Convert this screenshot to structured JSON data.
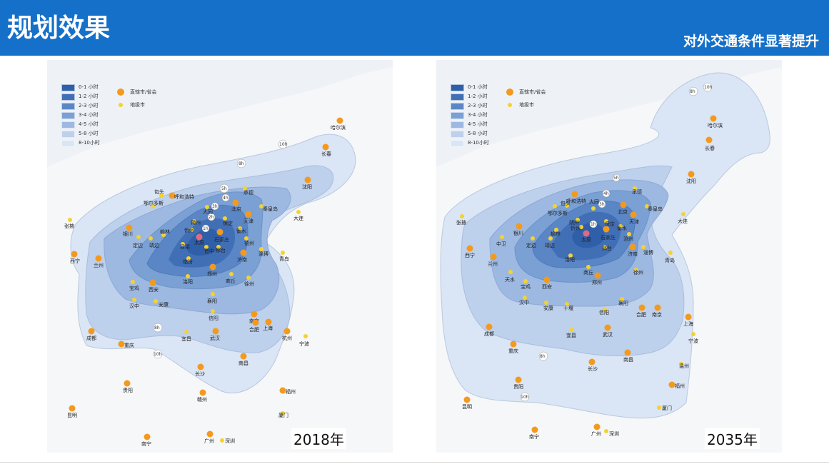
{
  "header": {
    "title": "规划效果",
    "subtitle": "对外交通条件显著提升"
  },
  "legend": {
    "zones": [
      "0-1 小时",
      "1-2 小时",
      "2-3 小时",
      "3-4 小时",
      "4-5 小时",
      "5-8 小时",
      "8-10小时"
    ],
    "zone_colors": [
      "#2f5fa8",
      "#416fb6",
      "#5a86c6",
      "#7aa0d4",
      "#9db9e1",
      "#bdd0ec",
      "#dae5f5"
    ],
    "major_city": "直辖市/省会",
    "prefecture_city": "地级市"
  },
  "maps": [
    {
      "year": "2018年",
      "contour_labels": [
        "1h",
        "2h",
        "3h",
        "4h",
        "5h",
        "8h",
        "10h"
      ],
      "cities": [
        "哈尔滨",
        "长春",
        "沈阳",
        "大连",
        "呼和浩特",
        "包头",
        "鄂尔多斯",
        "榆林",
        "北京",
        "天津",
        "唐山",
        "秦皇岛",
        "承德",
        "大同",
        "朔州",
        "忻州",
        "太原",
        "晋中",
        "吕梁",
        "长治",
        "临汾",
        "运城",
        "石家庄",
        "保定",
        "衡水",
        "邢台",
        "邯郸",
        "德州",
        "济南",
        "淄博",
        "青岛",
        "郑州",
        "洛阳",
        "开封",
        "商丘",
        "徐州",
        "西安",
        "宝鸡",
        "延安",
        "银川",
        "西宁",
        "兰州",
        "张掖",
        "定边",
        "靖边",
        "汉中",
        "安康",
        "襄阳",
        "信阳",
        "南京",
        "合肥",
        "上海",
        "杭州",
        "宁波",
        "武汉",
        "宜昌",
        "成都",
        "重庆",
        "长沙",
        "南昌",
        "福州",
        "厦门",
        "广州",
        "深圳",
        "南宁",
        "昆明",
        "贵阳",
        "赣州",
        "驻马店",
        "荆门"
      ]
    },
    {
      "year": "2035年",
      "contour_labels": [
        "1h",
        "2h",
        "3h",
        "4h",
        "5h",
        "8h",
        "10h"
      ],
      "cities": [
        "哈尔滨",
        "长春",
        "沈阳",
        "大连",
        "呼和浩特",
        "包头",
        "鄂尔多斯",
        "榆林",
        "北京",
        "天津",
        "唐山",
        "秦皇岛",
        "承德",
        "大同",
        "朔州",
        "忻州",
        "太原",
        "晋中",
        "吕梁",
        "长治",
        "临汾",
        "运城",
        "石家庄",
        "保定",
        "衡水",
        "邢台",
        "沧州",
        "德州",
        "济南",
        "淄博",
        "青岛",
        "郑州",
        "洛阳",
        "开封",
        "商丘",
        "徐州",
        "西安",
        "宝鸡",
        "延安",
        "银川",
        "西宁",
        "兰州",
        "张掖",
        "中卫",
        "定边",
        "靖边",
        "天水",
        "汉中",
        "安康",
        "十堰",
        "襄阳",
        "信阳",
        "南京",
        "合肥",
        "上海",
        "杭州",
        "宁波",
        "温州",
        "武汉",
        "宜昌",
        "成都",
        "重庆",
        "长沙",
        "南昌",
        "福州",
        "厦门",
        "广州",
        "深圳",
        "南宁",
        "昆明",
        "贵阳"
      ]
    }
  ]
}
